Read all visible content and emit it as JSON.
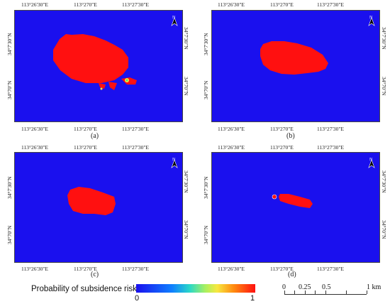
{
  "panels": [
    {
      "letter": "(a)",
      "lon_ticks": [
        "113°26'30\"E",
        "113°270\"E",
        "113°27'30\"E"
      ],
      "lat_ticks": [
        "34°7'30\"N",
        "34°70\"N"
      ]
    },
    {
      "letter": "(b)",
      "lon_ticks": [
        "113°26'30\"E",
        "113°270\"E",
        "113°27'30\"E"
      ],
      "lat_ticks": [
        "34°7'30\"N",
        "34°70\"N"
      ]
    },
    {
      "letter": "(c)",
      "lon_ticks": [
        "113°26'30\"E",
        "113°270\"E",
        "113°27'30\"E"
      ],
      "lat_ticks": [
        "34°7'30\"N",
        "34°70\"N"
      ]
    },
    {
      "letter": "(d)",
      "lon_ticks": [
        "113°26'30\"E",
        "113°270\"E",
        "113°27'30\"E"
      ],
      "lat_ticks": [
        "34°7'30\"N",
        "34°70\"N"
      ]
    }
  ],
  "north_label": "N",
  "legend": {
    "title": "Probability of subsidence risk",
    "min_label": "0",
    "max_label": "1",
    "colors": {
      "low": "#1a10ee",
      "high": "#ff1010"
    }
  },
  "scale_bar": {
    "labels": [
      "0",
      "0.25",
      "0.5",
      "1 km"
    ]
  }
}
